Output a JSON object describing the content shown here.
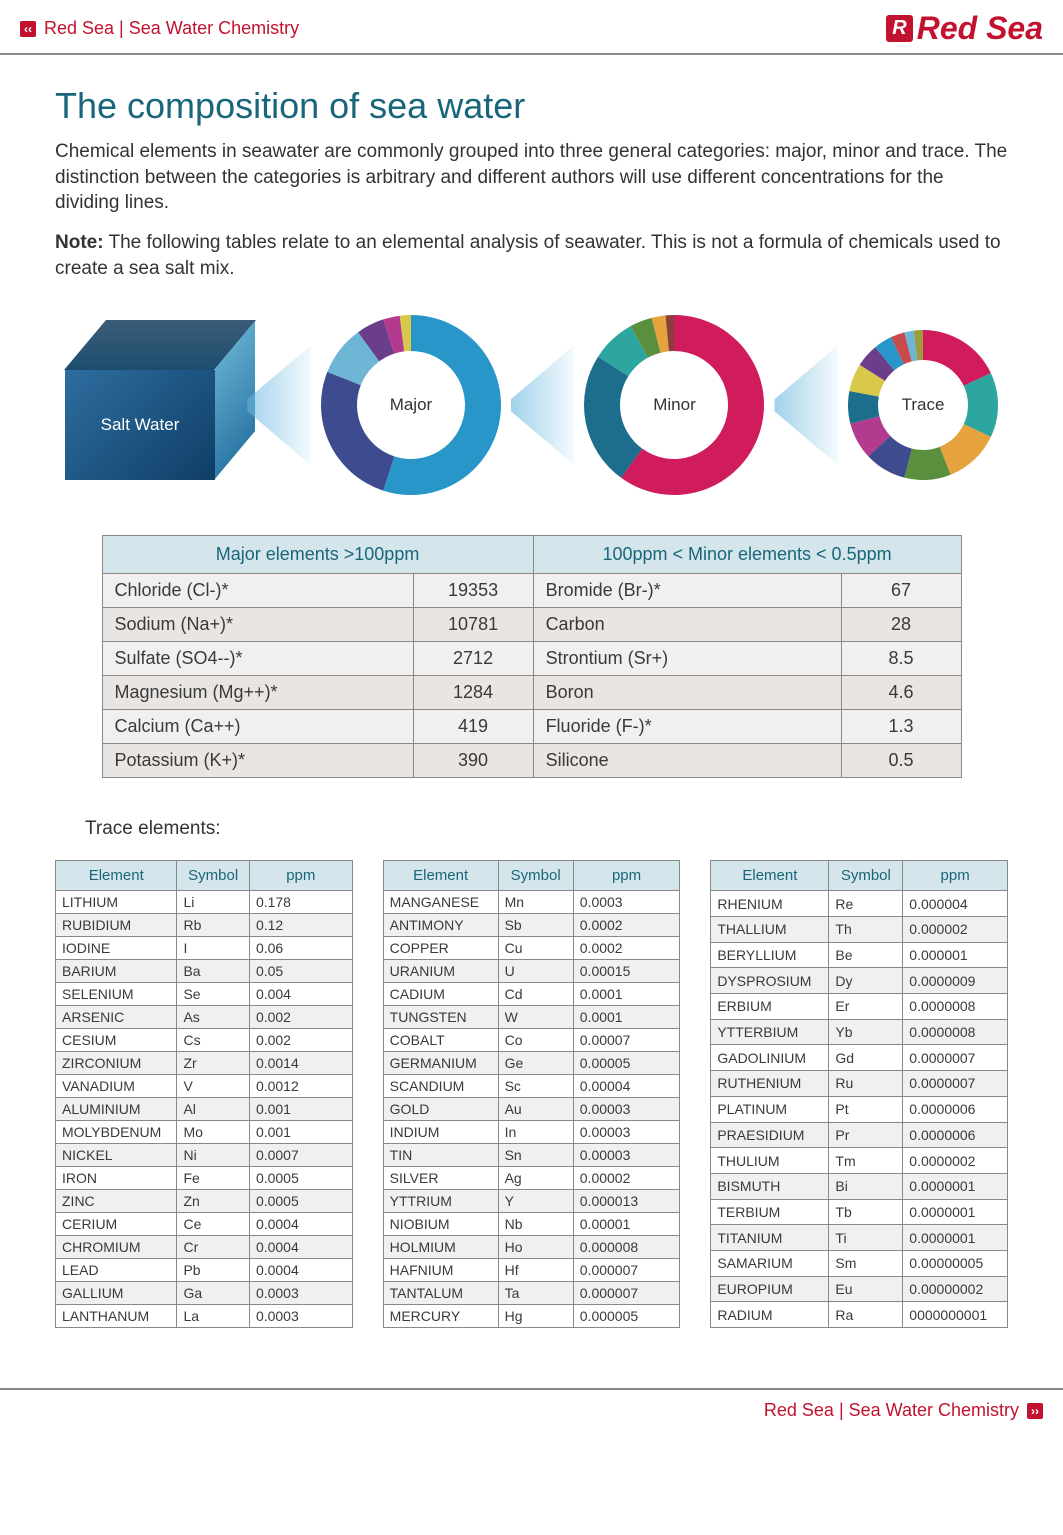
{
  "header": {
    "breadcrumb": "Red Sea | Sea Water Chemistry",
    "logo_text": "Red Sea",
    "logo_mark": "R"
  },
  "title": "The composition of sea water",
  "intro": "Chemical elements in seawater are commonly grouped into three general categories: major, minor and trace. The distinction between the categories is arbitrary and different authors will use different concentrations for the dividing lines.",
  "note_label": "Note:",
  "note_text": " The following tables relate to an elemental analysis of seawater. This is not a formula of chemicals used to create a sea salt mix.",
  "diagram": {
    "cube_label": "Salt Water",
    "donuts": [
      {
        "label": "Major",
        "size": 180,
        "thickness": 36,
        "slices": [
          {
            "color": "#2896c8",
            "pct": 55
          },
          {
            "color": "#3e4b8f",
            "pct": 26
          },
          {
            "color": "#6fb5d6",
            "pct": 9
          },
          {
            "color": "#6a3e8a",
            "pct": 5
          },
          {
            "color": "#b33b8f",
            "pct": 3
          },
          {
            "color": "#d8c94a",
            "pct": 2
          }
        ]
      },
      {
        "label": "Minor",
        "size": 180,
        "thickness": 36,
        "slices": [
          {
            "color": "#d01c5c",
            "pct": 60
          },
          {
            "color": "#1c6e8c",
            "pct": 24
          },
          {
            "color": "#2da6a0",
            "pct": 8
          },
          {
            "color": "#5a8f3e",
            "pct": 4
          },
          {
            "color": "#e6a23c",
            "pct": 2.5
          },
          {
            "color": "#8a3e3e",
            "pct": 1.5
          }
        ]
      },
      {
        "label": "Trace",
        "size": 150,
        "thickness": 30,
        "slices": [
          {
            "color": "#d01c5c",
            "pct": 18
          },
          {
            "color": "#2da6a0",
            "pct": 14
          },
          {
            "color": "#e6a23c",
            "pct": 12
          },
          {
            "color": "#5a8f3e",
            "pct": 10
          },
          {
            "color": "#3e4b8f",
            "pct": 9
          },
          {
            "color": "#b33b8f",
            "pct": 8
          },
          {
            "color": "#1c6e8c",
            "pct": 7
          },
          {
            "color": "#d8c94a",
            "pct": 6
          },
          {
            "color": "#6a3e8a",
            "pct": 5
          },
          {
            "color": "#2896c8",
            "pct": 4
          },
          {
            "color": "#c94a4a",
            "pct": 3
          },
          {
            "color": "#6fb5d6",
            "pct": 2
          },
          {
            "color": "#9c9c3e",
            "pct": 2
          }
        ]
      }
    ]
  },
  "mm": {
    "h1": "Major elements >100ppm",
    "h2": "100ppm < Minor elements < 0.5ppm",
    "rows": [
      {
        "a": "Chloride (Cl-)*",
        "av": "19353",
        "b": "Bromide (Br-)*",
        "bv": "67"
      },
      {
        "a": "Sodium (Na+)*",
        "av": "10781",
        "b": "Carbon",
        "bv": "28"
      },
      {
        "a": "Sulfate (SO4--)*",
        "av": "2712",
        "b": "Strontium (Sr+)",
        "bv": "8.5"
      },
      {
        "a": "Magnesium (Mg++)*",
        "av": "1284",
        "b": "Boron",
        "bv": "4.6"
      },
      {
        "a": "Calcium (Ca++)",
        "av": "419",
        "b": "Fluoride (F-)*",
        "bv": "1.3"
      },
      {
        "a": "Potassium (K+)*",
        "av": "390",
        "b": "Silicone",
        "bv": "0.5"
      }
    ]
  },
  "trace_title": "Trace elements:",
  "trace_headers": {
    "element": "Element",
    "symbol": "Symbol",
    "ppm": "ppm"
  },
  "trace": [
    [
      {
        "e": "LITHIUM",
        "s": "Li",
        "p": "0.178"
      },
      {
        "e": "RUBIDIUM",
        "s": "Rb",
        "p": "0.12"
      },
      {
        "e": "IODINE",
        "s": "I",
        "p": "0.06"
      },
      {
        "e": "BARIUM",
        "s": "Ba",
        "p": "0.05"
      },
      {
        "e": "SELENIUM",
        "s": "Se",
        "p": "0.004"
      },
      {
        "e": "ARSENIC",
        "s": "As",
        "p": "0.002"
      },
      {
        "e": "CESIUM",
        "s": "Cs",
        "p": "0.002"
      },
      {
        "e": "ZIRCONIUM",
        "s": "Zr",
        "p": "0.0014"
      },
      {
        "e": "VANADIUM",
        "s": "V",
        "p": "0.0012"
      },
      {
        "e": "ALUMINIUM",
        "s": "Al",
        "p": "0.001"
      },
      {
        "e": "MOLYBDENUM",
        "s": "Mo",
        "p": "0.001"
      },
      {
        "e": "NICKEL",
        "s": "Ni",
        "p": "0.0007"
      },
      {
        "e": "IRON",
        "s": "Fe",
        "p": "0.0005"
      },
      {
        "e": "ZINC",
        "s": "Zn",
        "p": "0.0005"
      },
      {
        "e": "CERIUM",
        "s": "Ce",
        "p": "0.0004"
      },
      {
        "e": "CHROMIUM",
        "s": "Cr",
        "p": "0.0004"
      },
      {
        "e": "LEAD",
        "s": "Pb",
        "p": "0.0004"
      },
      {
        "e": "GALLIUM",
        "s": "Ga",
        "p": "0.0003"
      },
      {
        "e": "LANTHANUM",
        "s": "La",
        "p": "0.0003"
      }
    ],
    [
      {
        "e": "MANGANESE",
        "s": "Mn",
        "p": "0.0003"
      },
      {
        "e": "ANTIMONY",
        "s": "Sb",
        "p": "0.0002"
      },
      {
        "e": "COPPER",
        "s": "Cu",
        "p": "0.0002"
      },
      {
        "e": "URANIUM",
        "s": "U",
        "p": "0.00015"
      },
      {
        "e": "CADIUM",
        "s": "Cd",
        "p": "0.0001"
      },
      {
        "e": "TUNGSTEN",
        "s": "W",
        "p": "0.0001"
      },
      {
        "e": "COBALT",
        "s": "Co",
        "p": "0.00007"
      },
      {
        "e": "GERMANIUM",
        "s": "Ge",
        "p": "0.00005"
      },
      {
        "e": "SCANDIUM",
        "s": "Sc",
        "p": "0.00004"
      },
      {
        "e": "GOLD",
        "s": "Au",
        "p": "0.00003"
      },
      {
        "e": "INDIUM",
        "s": "In",
        "p": "0.00003"
      },
      {
        "e": "TIN",
        "s": "Sn",
        "p": "0.00003"
      },
      {
        "e": "SILVER",
        "s": "Ag",
        "p": "0.00002"
      },
      {
        "e": "YTTRIUM",
        "s": "Y",
        "p": "0.000013"
      },
      {
        "e": "NIOBIUM",
        "s": "Nb",
        "p": "0.00001"
      },
      {
        "e": "HOLMIUM",
        "s": "Ho",
        "p": "0.000008"
      },
      {
        "e": "HAFNIUM",
        "s": "Hf",
        "p": "0.000007"
      },
      {
        "e": "TANTALUM",
        "s": "Ta",
        "p": "0.000007"
      },
      {
        "e": "MERCURY",
        "s": "Hg",
        "p": "0.000005"
      }
    ],
    [
      {
        "e": "RHENIUM",
        "s": "Re",
        "p": "0.000004"
      },
      {
        "e": "THALLIUM",
        "s": "Th",
        "p": "0.000002"
      },
      {
        "e": "BERYLLIUM",
        "s": "Be",
        "p": "0.000001"
      },
      {
        "e": "DYSPROSIUM",
        "s": "Dy",
        "p": "0.0000009"
      },
      {
        "e": "ERBIUM",
        "s": "Er",
        "p": "0.0000008"
      },
      {
        "e": "YTTERBIUM",
        "s": "Yb",
        "p": "0.0000008"
      },
      {
        "e": "GADOLINIUM",
        "s": "Gd",
        "p": "0.0000007"
      },
      {
        "e": "RUTHENIUM",
        "s": "Ru",
        "p": "0.0000007"
      },
      {
        "e": "PLATINUM",
        "s": "Pt",
        "p": "0.0000006"
      },
      {
        "e": "PRAESIDIUM",
        "s": "Pr",
        "p": "0.0000006"
      },
      {
        "e": "THULIUM",
        "s": "Tm",
        "p": "0.0000002"
      },
      {
        "e": "BISMUTH",
        "s": "Bi",
        "p": "0.0000001"
      },
      {
        "e": "TERBIUM",
        "s": "Tb",
        "p": "0.0000001"
      },
      {
        "e": "TITANIUM",
        "s": "Ti",
        "p": "0.0000001"
      },
      {
        "e": "SAMARIUM",
        "s": "Sm",
        "p": "0.00000005"
      },
      {
        "e": "EUROPIUM",
        "s": "Eu",
        "p": "0.00000002"
      },
      {
        "e": "RADIUM",
        "s": "Ra",
        "p": "0000000001"
      }
    ]
  ],
  "footer": {
    "text": "Red Sea | Sea Water Chemistry"
  },
  "colors": {
    "brand": "#c3122f",
    "teal": "#19667a",
    "th_bg": "#d4e5ec",
    "border": "#888888"
  }
}
